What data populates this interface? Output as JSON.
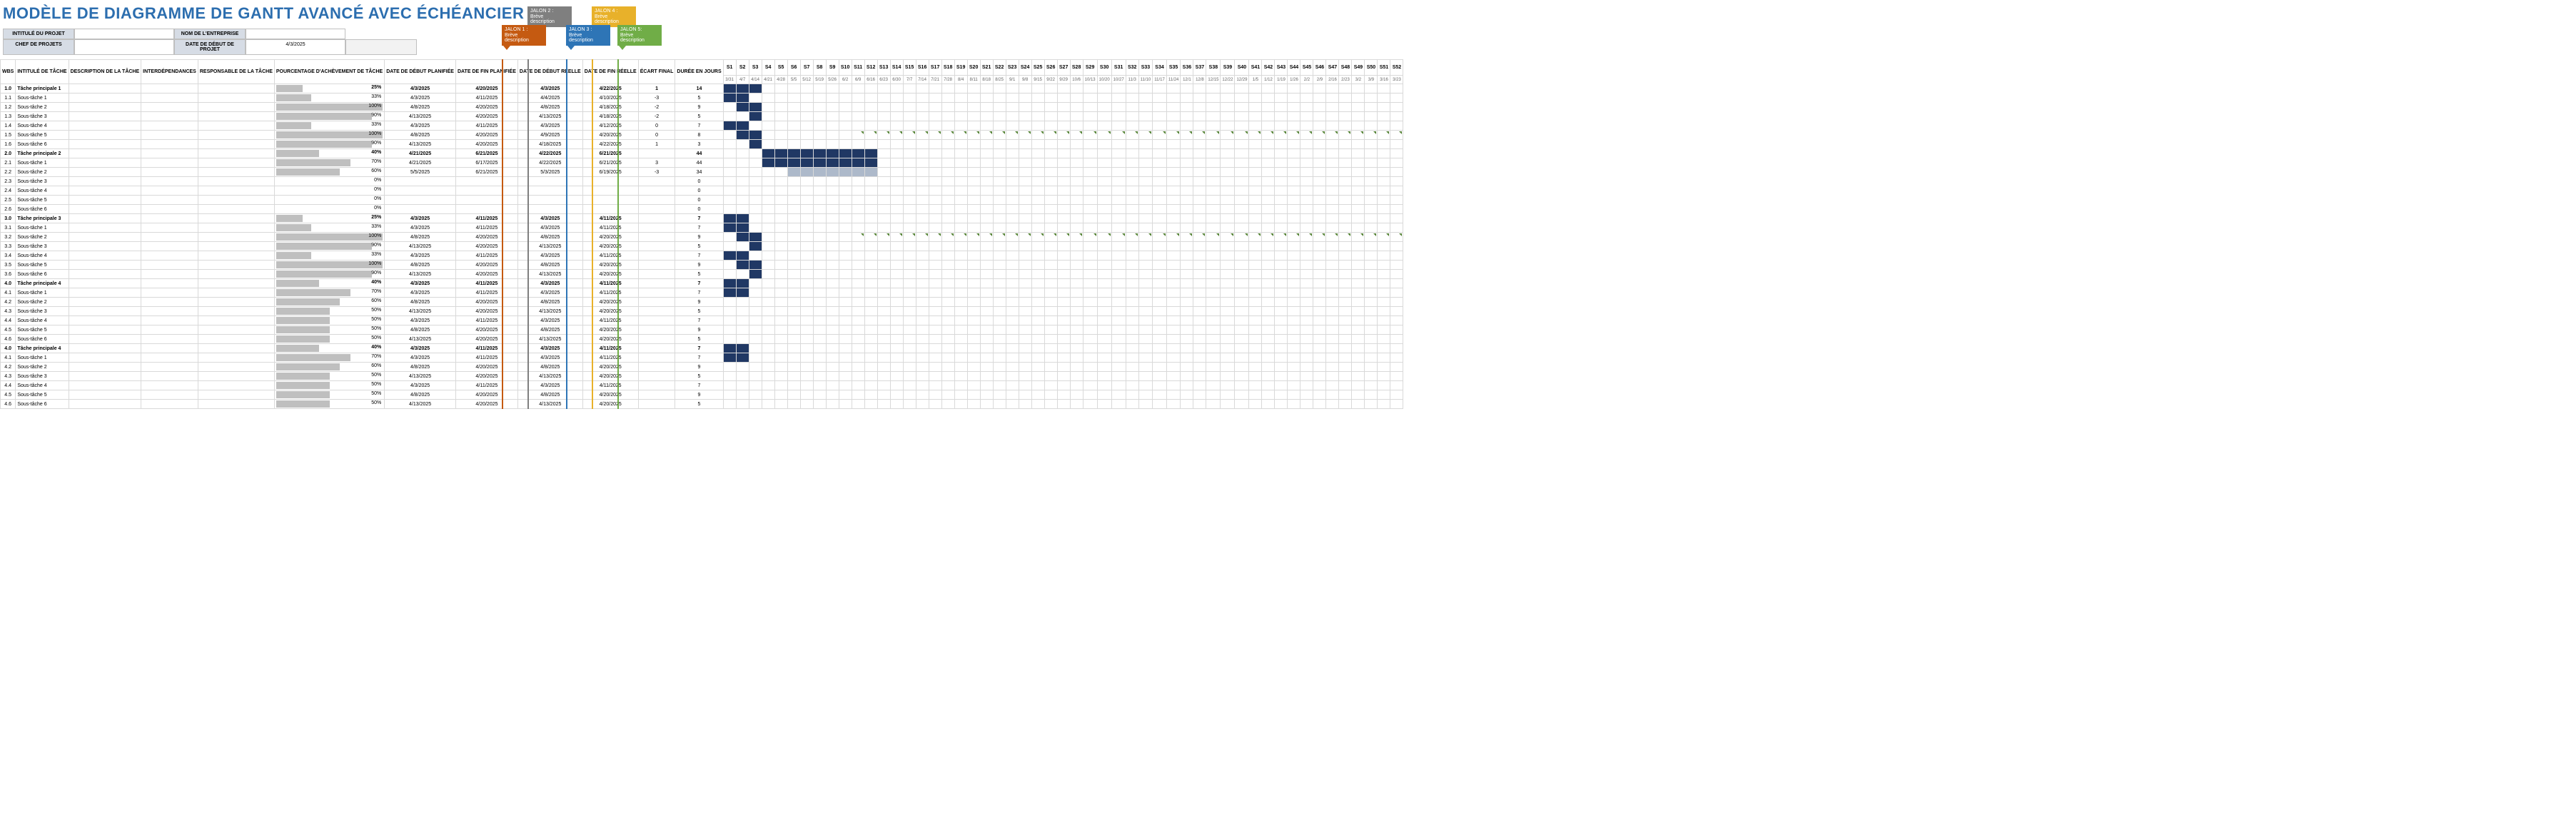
{
  "title": "MODÈLE DE DIAGRAMME DE GANTT AVANCÉ AVEC ÉCHÉANCIER",
  "meta": {
    "project_title_label": "INTITULÉ DU PROJET",
    "project_title": "",
    "company_label": "NOM DE L'ENTREPRISE",
    "company": "",
    "pm_label": "CHEF DE PROJETS",
    "pm": "",
    "start_label": "DATE DE DÉBUT DE PROJET",
    "start": "4/3/2025"
  },
  "columns": {
    "wbs": "WBS",
    "name": "INTITULÉ DE TÂCHE",
    "desc": "DESCRIPTION DE LA TÂCHE",
    "dep": "INTERDÉPENDANCES",
    "resp": "RESPONSABLE DE LA TÂCHE",
    "pct": "POURCENTAGE D'ACHÈVEMENT DE TÂCHE",
    "pstart": "DATE DE DÉBUT PLANIFIÉE",
    "pend": "DATE DE FIN PLANIFIÉE",
    "astart": "DATE DE DÉBUT RÉELLE",
    "aend": "DATE DE FIN RÉELLE",
    "var": "ÉCART FINAL",
    "dur": "DURÉE EN JOURS"
  },
  "milestones": [
    {
      "label": "JALON 2 :",
      "desc": "Brève description",
      "color": "#7f7f7f",
      "col": 2,
      "top_row": 0
    },
    {
      "label": "JALON 4 :",
      "desc": "Brève description",
      "color": "#e8b12a",
      "col": 7,
      "top_row": 0
    },
    {
      "label": "JALON 1 :",
      "desc": "Brève description",
      "color": "#c55a11",
      "col": 0,
      "top_row": 1
    },
    {
      "label": "JALON 3 :",
      "desc": "Brève description",
      "color": "#2e75b6",
      "col": 5,
      "top_row": 1
    },
    {
      "label": "JALON 5:",
      "desc": "Brève description",
      "color": "#70ad47",
      "col": 9,
      "top_row": 1
    }
  ],
  "timeline": {
    "start_col": 0,
    "weeks": [
      "S1",
      "S2",
      "S3",
      "S4",
      "S5",
      "S6",
      "S7",
      "S8",
      "S9",
      "S10",
      "S11",
      "S12",
      "S13",
      "S14",
      "S15",
      "S16",
      "S17",
      "S18",
      "S19",
      "S20",
      "S21",
      "S22",
      "S23",
      "S24",
      "S25",
      "S26",
      "S27",
      "S28",
      "S29",
      "S30",
      "S31",
      "S32",
      "S33",
      "S34",
      "S35",
      "S36",
      "S37",
      "S38",
      "S39",
      "S40",
      "S41",
      "S42",
      "S43",
      "S44",
      "S45",
      "S46",
      "S47",
      "S48",
      "S49",
      "S50",
      "S51",
      "S52"
    ],
    "dates": [
      "3/31",
      "4/7",
      "4/14",
      "4/21",
      "4/28",
      "5/5",
      "5/12",
      "5/19",
      "5/26",
      "6/2",
      "6/9",
      "6/16",
      "6/23",
      "6/30",
      "7/7",
      "7/14",
      "7/21",
      "7/28",
      "8/4",
      "8/11",
      "8/18",
      "8/25",
      "9/1",
      "9/8",
      "9/15",
      "9/22",
      "9/29",
      "10/6",
      "10/13",
      "10/20",
      "10/27",
      "11/3",
      "11/10",
      "11/17",
      "11/24",
      "12/1",
      "12/8",
      "12/15",
      "12/22",
      "12/29",
      "1/5",
      "1/12",
      "1/19",
      "1/26",
      "2/2",
      "2/9",
      "2/16",
      "2/23",
      "3/2",
      "3/9",
      "3/16",
      "3/23"
    ]
  },
  "tick_rows": [
    5,
    16
  ],
  "rows": [
    {
      "wbs": "1.0",
      "name": "Tâche principale 1",
      "pct": 25,
      "ps": "4/3/2025",
      "pe": "4/20/2025",
      "as": "4/3/2025",
      "ae": "4/22/2025",
      "var": "1",
      "dur": "14",
      "bold": true,
      "bar": [
        0,
        2
      ]
    },
    {
      "wbs": "1.1",
      "name": "Sous-tâche 1",
      "pct": 33,
      "ps": "4/3/2025",
      "pe": "4/11/2025",
      "as": "4/4/2025",
      "ae": "4/10/2025",
      "var": "-3",
      "dur": "5",
      "bar": [
        0,
        1
      ]
    },
    {
      "wbs": "1.2",
      "name": "Sous-tâche 2",
      "pct": 100,
      "ps": "4/8/2025",
      "pe": "4/20/2025",
      "as": "4/8/2025",
      "ae": "4/18/2025",
      "var": "-2",
      "dur": "9",
      "bar": [
        1,
        2
      ]
    },
    {
      "wbs": "1.3",
      "name": "Sous-tâche 3",
      "pct": 90,
      "ps": "4/13/2025",
      "pe": "4/20/2025",
      "as": "4/13/2025",
      "ae": "4/18/2025",
      "var": "-2",
      "dur": "5",
      "bar": [
        2,
        2
      ]
    },
    {
      "wbs": "1.4",
      "name": "Sous-tâche 4",
      "pct": 33,
      "ps": "4/3/2025",
      "pe": "4/11/2025",
      "as": "4/3/2025",
      "ae": "4/12/2025",
      "var": "0",
      "dur": "7",
      "bar": [
        0,
        1
      ]
    },
    {
      "wbs": "1.5",
      "name": "Sous-tâche 5",
      "pct": 100,
      "ps": "4/8/2025",
      "pe": "4/20/2025",
      "as": "4/9/2025",
      "ae": "4/20/2025",
      "var": "0",
      "dur": "8",
      "bar": [
        1,
        2
      ]
    },
    {
      "wbs": "1.6",
      "name": "Sous-tâche 6",
      "pct": 90,
      "ps": "4/13/2025",
      "pe": "4/20/2025",
      "as": "4/18/2025",
      "ae": "4/22/2025",
      "var": "1",
      "dur": "3",
      "bar": [
        2,
        2
      ]
    },
    {
      "wbs": "2.0",
      "name": "Tâche principale 2",
      "pct": 40,
      "ps": "4/21/2025",
      "pe": "6/21/2025",
      "as": "4/22/2025",
      "ae": "6/21/2025",
      "var": "",
      "dur": "44",
      "bold": true,
      "bar": [
        3,
        11
      ]
    },
    {
      "wbs": "2.1",
      "name": "Sous-tâche 1",
      "pct": 70,
      "ps": "4/21/2025",
      "pe": "6/17/2025",
      "as": "4/22/2025",
      "ae": "6/21/2025",
      "var": "3",
      "dur": "44",
      "bar": [
        3,
        11
      ]
    },
    {
      "wbs": "2.2",
      "name": "Sous-tâche 2",
      "pct": 60,
      "ps": "5/5/2025",
      "pe": "6/21/2025",
      "as": "5/3/2025",
      "ae": "6/19/2025",
      "var": "-3",
      "dur": "34",
      "bar": [
        5,
        11
      ],
      "light": true
    },
    {
      "wbs": "2.3",
      "name": "Sous-tâche 3",
      "pct": 0,
      "ps": "",
      "pe": "",
      "as": "",
      "ae": "",
      "var": "",
      "dur": "0"
    },
    {
      "wbs": "2.4",
      "name": "Sous-tâche 4",
      "pct": 0,
      "ps": "",
      "pe": "",
      "as": "",
      "ae": "",
      "var": "",
      "dur": "0"
    },
    {
      "wbs": "2.5",
      "name": "Sous-tâche 5",
      "pct": 0,
      "ps": "",
      "pe": "",
      "as": "",
      "ae": "",
      "var": "",
      "dur": "0"
    },
    {
      "wbs": "2.6",
      "name": "Sous-tâche 6",
      "pct": 0,
      "ps": "",
      "pe": "",
      "as": "",
      "ae": "",
      "var": "",
      "dur": "0"
    },
    {
      "wbs": "3.0",
      "name": "Tâche principale 3",
      "pct": 25,
      "ps": "4/3/2025",
      "pe": "4/11/2025",
      "as": "4/3/2025",
      "ae": "4/11/2025",
      "var": "",
      "dur": "7",
      "bold": true,
      "bar": [
        0,
        1
      ]
    },
    {
      "wbs": "3.1",
      "name": "Sous-tâche 1",
      "pct": 33,
      "ps": "4/3/2025",
      "pe": "4/11/2025",
      "as": "4/3/2025",
      "ae": "4/11/2025",
      "var": "",
      "dur": "7",
      "bar": [
        0,
        1
      ]
    },
    {
      "wbs": "3.2",
      "name": "Sous-tâche 2",
      "pct": 100,
      "ps": "4/8/2025",
      "pe": "4/20/2025",
      "as": "4/8/2025",
      "ae": "4/20/2025",
      "var": "",
      "dur": "9",
      "bar": [
        1,
        2
      ]
    },
    {
      "wbs": "3.3",
      "name": "Sous-tâche 3",
      "pct": 90,
      "ps": "4/13/2025",
      "pe": "4/20/2025",
      "as": "4/13/2025",
      "ae": "4/20/2025",
      "var": "",
      "dur": "5",
      "bar": [
        2,
        2
      ]
    },
    {
      "wbs": "3.4",
      "name": "Sous-tâche 4",
      "pct": 33,
      "ps": "4/3/2025",
      "pe": "4/11/2025",
      "as": "4/3/2025",
      "ae": "4/11/2025",
      "var": "",
      "dur": "7",
      "bar": [
        0,
        1
      ]
    },
    {
      "wbs": "3.5",
      "name": "Sous-tâche 5",
      "pct": 100,
      "ps": "4/8/2025",
      "pe": "4/20/2025",
      "as": "4/8/2025",
      "ae": "4/20/2025",
      "var": "",
      "dur": "9",
      "bar": [
        1,
        2
      ]
    },
    {
      "wbs": "3.6",
      "name": "Sous-tâche 6",
      "pct": 90,
      "ps": "4/13/2025",
      "pe": "4/20/2025",
      "as": "4/13/2025",
      "ae": "4/20/2025",
      "var": "",
      "dur": "5",
      "bar": [
        2,
        2
      ]
    },
    {
      "wbs": "4.0",
      "name": "Tâche principale 4",
      "pct": 40,
      "ps": "4/3/2025",
      "pe": "4/11/2025",
      "as": "4/3/2025",
      "ae": "4/11/2025",
      "var": "",
      "dur": "7",
      "bold": true,
      "bar": [
        0,
        1
      ]
    },
    {
      "wbs": "4.1",
      "name": "Sous-tâche 1",
      "pct": 70,
      "ps": "4/3/2025",
      "pe": "4/11/2025",
      "as": "4/3/2025",
      "ae": "4/11/2025",
      "var": "",
      "dur": "7",
      "bar": [
        0,
        1
      ]
    },
    {
      "wbs": "4.2",
      "name": "Sous-tâche 2",
      "pct": 60,
      "ps": "4/8/2025",
      "pe": "4/20/2025",
      "as": "4/8/2025",
      "ae": "4/20/2025",
      "var": "",
      "dur": "9"
    },
    {
      "wbs": "4.3",
      "name": "Sous-tâche 3",
      "pct": 50,
      "ps": "4/13/2025",
      "pe": "4/20/2025",
      "as": "4/13/2025",
      "ae": "4/20/2025",
      "var": "",
      "dur": "5"
    },
    {
      "wbs": "4.4",
      "name": "Sous-tâche 4",
      "pct": 50,
      "ps": "4/3/2025",
      "pe": "4/11/2025",
      "as": "4/3/2025",
      "ae": "4/11/2025",
      "var": "",
      "dur": "7"
    },
    {
      "wbs": "4.5",
      "name": "Sous-tâche 5",
      "pct": 50,
      "ps": "4/8/2025",
      "pe": "4/20/2025",
      "as": "4/8/2025",
      "ae": "4/20/2025",
      "var": "",
      "dur": "9"
    },
    {
      "wbs": "4.6",
      "name": "Sous-tâche 6",
      "pct": 50,
      "ps": "4/13/2025",
      "pe": "4/20/2025",
      "as": "4/13/2025",
      "ae": "4/20/2025",
      "var": "",
      "dur": "5"
    },
    {
      "wbs": "4.0",
      "name": "Tâche principale 4",
      "pct": 40,
      "ps": "4/3/2025",
      "pe": "4/11/2025",
      "as": "4/3/2025",
      "ae": "4/11/2025",
      "var": "",
      "dur": "7",
      "bold": true,
      "bar": [
        0,
        1
      ]
    },
    {
      "wbs": "4.1",
      "name": "Sous-tâche 1",
      "pct": 70,
      "ps": "4/3/2025",
      "pe": "4/11/2025",
      "as": "4/3/2025",
      "ae": "4/11/2025",
      "var": "",
      "dur": "7",
      "bar": [
        0,
        1
      ]
    },
    {
      "wbs": "4.2",
      "name": "Sous-tâche 2",
      "pct": 60,
      "ps": "4/8/2025",
      "pe": "4/20/2025",
      "as": "4/8/2025",
      "ae": "4/20/2025",
      "var": "",
      "dur": "9"
    },
    {
      "wbs": "4.3",
      "name": "Sous-tâche 3",
      "pct": 50,
      "ps": "4/13/2025",
      "pe": "4/20/2025",
      "as": "4/13/2025",
      "ae": "4/20/2025",
      "var": "",
      "dur": "5"
    },
    {
      "wbs": "4.4",
      "name": "Sous-tâche 4",
      "pct": 50,
      "ps": "4/3/2025",
      "pe": "4/11/2025",
      "as": "4/3/2025",
      "ae": "4/11/2025",
      "var": "",
      "dur": "7"
    },
    {
      "wbs": "4.5",
      "name": "Sous-tâche 5",
      "pct": 50,
      "ps": "4/8/2025",
      "pe": "4/20/2025",
      "as": "4/8/2025",
      "ae": "4/20/2025",
      "var": "",
      "dur": "9"
    },
    {
      "wbs": "4.6",
      "name": "Sous-tâche 6",
      "pct": 50,
      "ps": "4/13/2025",
      "pe": "4/20/2025",
      "as": "4/13/2025",
      "ae": "4/20/2025",
      "var": "",
      "dur": "5"
    }
  ],
  "colors": {
    "title": "#2c6eaf",
    "bar": "#203864",
    "bar_light": "#adb9ca",
    "pct_bar": "#bfbfbf",
    "grid": "#d9d9d9",
    "meta_bg": "#d6dce5"
  }
}
